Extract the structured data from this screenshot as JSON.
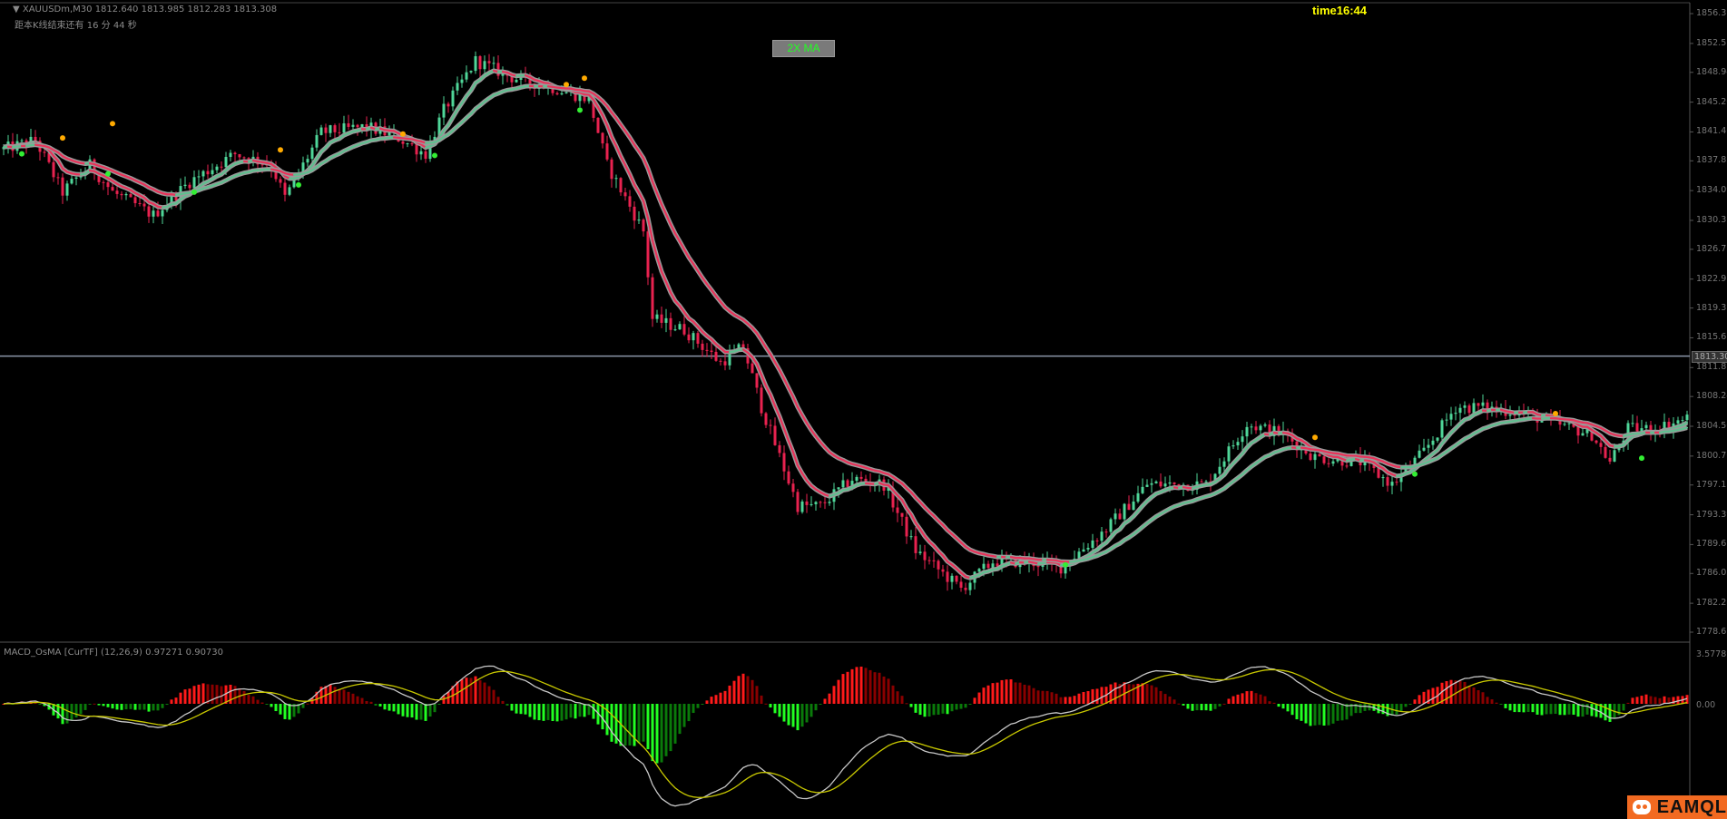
{
  "header": {
    "symbol_line": "▼ XAUUSDm,M30  1812.640 1813.985 1812.283 1813.308",
    "countdown": "距本K线结束还有  16 分 44 秒"
  },
  "indicator_button": "2X MA",
  "time_label": "time16:44",
  "macd_label": "MACD_OsMA [CurTF] (12,26,9) 0.97271 0.90730",
  "logo_text": "EAMQL",
  "colors": {
    "background": "#000000",
    "bull_candle": "#4fd699",
    "bear_candle": "#e8224f",
    "ma_rising": "#5fbf8f",
    "ma_falling": "#e8335a",
    "ma_border": "#9a9a9a",
    "signal_up_dot": "#33ee33",
    "signal_down_dot": "#ffaa00",
    "hist_positive": "#ff1a1a",
    "hist_negative": "#22ff22",
    "macd_line": "#c8c8c8",
    "signal_line": "#c8c800",
    "price_line": "#8c96a8"
  },
  "chart_data": {
    "type": "candlestick",
    "symbol": "XAUUSDm",
    "timeframe": "M30",
    "ylim": [
      1778.65,
      1856.315
    ],
    "price_axis_labels": [
      "1856.315",
      "1852.570",
      "1848.940",
      "1845.200",
      "1841.460",
      "1837.830",
      "1834.090",
      "1830.350",
      "1826.720",
      "1822.980",
      "1819.350",
      "1815.610",
      "1811.870",
      "1808.240",
      "1804.500",
      "1800.760",
      "1797.130",
      "1793.390",
      "1789.650",
      "1786.020",
      "1782.280",
      "1778.650"
    ],
    "current_price": "1813.308",
    "close_path": [
      [
        0,
        1839.3
      ],
      [
        7,
        1840.4
      ],
      [
        13,
        1833.9
      ],
      [
        19,
        1837.3
      ],
      [
        24,
        1833.9
      ],
      [
        33,
        1831.0
      ],
      [
        41,
        1835.2
      ],
      [
        51,
        1838.7
      ],
      [
        59,
        1837.3
      ],
      [
        62,
        1833.2
      ],
      [
        70,
        1841.4
      ],
      [
        80,
        1842.1
      ],
      [
        87,
        1840.7
      ],
      [
        93,
        1838.7
      ],
      [
        97,
        1844.2
      ],
      [
        104,
        1850.4
      ],
      [
        112,
        1848.3
      ],
      [
        121,
        1847.0
      ],
      [
        129,
        1845.6
      ],
      [
        133,
        1837.3
      ],
      [
        141,
        1829.0
      ],
      [
        143,
        1818.0
      ],
      [
        150,
        1816.6
      ],
      [
        158,
        1812.5
      ],
      [
        163,
        1814.5
      ],
      [
        167,
        1806.9
      ],
      [
        175,
        1794.5
      ],
      [
        180,
        1794.5
      ],
      [
        187,
        1797.9
      ],
      [
        194,
        1797.2
      ],
      [
        201,
        1788.9
      ],
      [
        211,
        1784.1
      ],
      [
        218,
        1787.5
      ],
      [
        226,
        1787.5
      ],
      [
        233,
        1786.8
      ],
      [
        243,
        1791.6
      ],
      [
        252,
        1797.2
      ],
      [
        265,
        1797.2
      ],
      [
        274,
        1804.8
      ],
      [
        282,
        1803.5
      ],
      [
        289,
        1800.6
      ],
      [
        299,
        1800.0
      ],
      [
        306,
        1797.2
      ],
      [
        313,
        1801.3
      ],
      [
        320,
        1806.9
      ],
      [
        325,
        1806.9
      ],
      [
        335,
        1806.2
      ],
      [
        342,
        1804.8
      ],
      [
        350,
        1803.5
      ],
      [
        354,
        1800.0
      ],
      [
        358,
        1804.2
      ],
      [
        364,
        1804.2
      ],
      [
        371,
        1805.5
      ]
    ],
    "moving_averages": [
      "fast",
      "slow"
    ],
    "signal_dots_down": [
      [
        13,
        1840.7
      ],
      [
        24,
        1842.5
      ],
      [
        61,
        1839.2
      ],
      [
        88,
        1841.2
      ],
      [
        124,
        1847.4
      ],
      [
        128,
        1848.2
      ],
      [
        289,
        1803.1
      ],
      [
        342,
        1806.1
      ]
    ],
    "signal_dots_up": [
      [
        4,
        1838.7
      ],
      [
        23,
        1836.2
      ],
      [
        42,
        1833.9
      ],
      [
        65,
        1834.8
      ],
      [
        95,
        1838.5
      ],
      [
        127,
        1844.2
      ],
      [
        234,
        1787.1
      ],
      [
        311,
        1798.5
      ],
      [
        361,
        1800.5
      ]
    ],
    "macd": {
      "params": [
        12,
        26,
        9
      ],
      "value": 0.97271,
      "signal": 0.9073,
      "axis_labels": [
        "3.57783",
        "0.00"
      ]
    }
  }
}
